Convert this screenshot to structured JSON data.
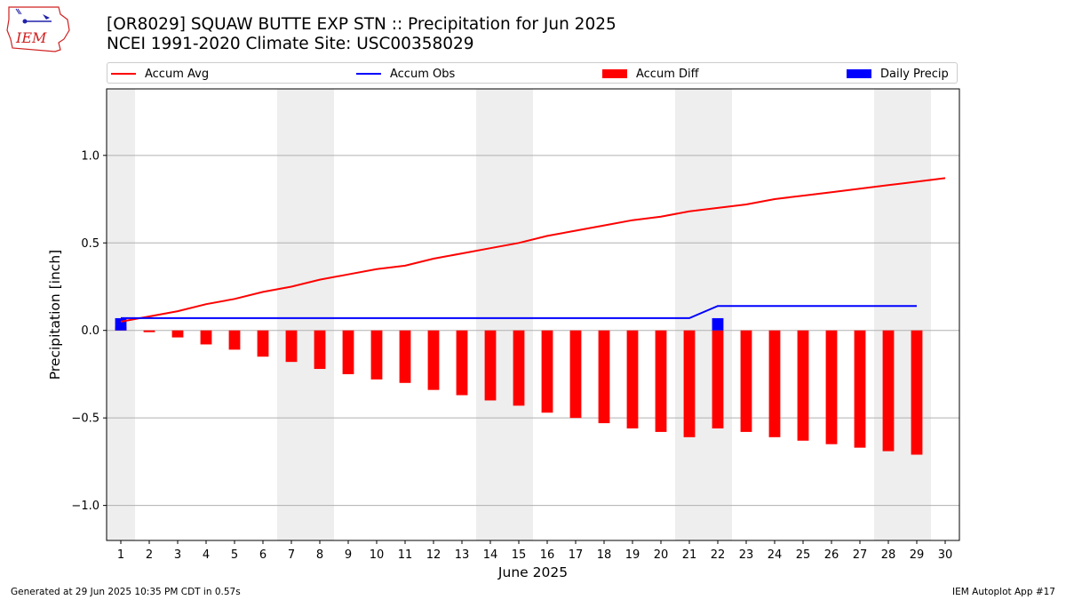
{
  "header": {
    "title_line1": "[OR8029] SQUAW BUTTE EXP STN :: Precipitation for Jun 2025",
    "title_line2": "NCEI 1991-2020 Climate Site: USC00358029",
    "logo_text": "IEM"
  },
  "footer": {
    "generated": "Generated at 29 Jun 2025 10:35 PM CDT in 0.57s",
    "app": "IEM Autoplot App #17"
  },
  "colors": {
    "avg": "#ff0000",
    "obs": "#0000ff",
    "diff": "#ff0000",
    "daily": "#0000ff",
    "weekend_band": "#eeeeee",
    "grid": "#b0b0b0"
  },
  "chart_data": {
    "type": "bar",
    "xlabel": "June 2025",
    "ylabel": "Precipitation [inch]",
    "ylim": [
      -1.2,
      1.38
    ],
    "yticks": [
      -1.0,
      -0.5,
      0.0,
      0.5,
      1.0
    ],
    "ytick_labels": [
      "−1.0",
      "−0.5",
      "0.0",
      "0.5",
      "1.0"
    ],
    "grid": "horizontal",
    "legend_position": "top",
    "x": [
      1,
      2,
      3,
      4,
      5,
      6,
      7,
      8,
      9,
      10,
      11,
      12,
      13,
      14,
      15,
      16,
      17,
      18,
      19,
      20,
      21,
      22,
      23,
      24,
      25,
      26,
      27,
      28,
      29,
      30
    ],
    "weekend_days": [
      1,
      7,
      8,
      14,
      15,
      21,
      22,
      28,
      29
    ],
    "series": [
      {
        "name": "Accum Avg",
        "kind": "line",
        "x": [
          1,
          2,
          3,
          4,
          5,
          6,
          7,
          8,
          9,
          10,
          11,
          12,
          13,
          14,
          15,
          16,
          17,
          18,
          19,
          20,
          21,
          22,
          23,
          24,
          25,
          26,
          27,
          28,
          29,
          30
        ],
        "values": [
          0.05,
          0.08,
          0.11,
          0.15,
          0.18,
          0.22,
          0.25,
          0.29,
          0.32,
          0.35,
          0.37,
          0.41,
          0.44,
          0.47,
          0.5,
          0.54,
          0.57,
          0.6,
          0.63,
          0.65,
          0.68,
          0.7,
          0.72,
          0.75,
          0.77,
          0.79,
          0.81,
          0.83,
          0.85,
          0.87
        ]
      },
      {
        "name": "Accum Obs",
        "kind": "line",
        "x": [
          1,
          2,
          3,
          4,
          5,
          6,
          7,
          8,
          9,
          10,
          11,
          12,
          13,
          14,
          15,
          16,
          17,
          18,
          19,
          20,
          21,
          22,
          23,
          24,
          25,
          26,
          27,
          28,
          29
        ],
        "values": [
          0.07,
          0.07,
          0.07,
          0.07,
          0.07,
          0.07,
          0.07,
          0.07,
          0.07,
          0.07,
          0.07,
          0.07,
          0.07,
          0.07,
          0.07,
          0.07,
          0.07,
          0.07,
          0.07,
          0.07,
          0.07,
          0.14,
          0.14,
          0.14,
          0.14,
          0.14,
          0.14,
          0.14,
          0.14
        ]
      },
      {
        "name": "Accum Diff",
        "kind": "bar",
        "x": [
          1,
          2,
          3,
          4,
          5,
          6,
          7,
          8,
          9,
          10,
          11,
          12,
          13,
          14,
          15,
          16,
          17,
          18,
          19,
          20,
          21,
          22,
          23,
          24,
          25,
          26,
          27,
          28,
          29
        ],
        "values": [
          0.02,
          -0.01,
          -0.04,
          -0.08,
          -0.11,
          -0.15,
          -0.18,
          -0.22,
          -0.25,
          -0.28,
          -0.3,
          -0.34,
          -0.37,
          -0.4,
          -0.43,
          -0.47,
          -0.5,
          -0.53,
          -0.56,
          -0.58,
          -0.61,
          -0.56,
          -0.58,
          -0.61,
          -0.63,
          -0.65,
          -0.67,
          -0.69,
          -0.71
        ]
      },
      {
        "name": "Daily Precip",
        "kind": "bar",
        "x": [
          1,
          22
        ],
        "values": [
          0.07,
          0.07
        ]
      }
    ]
  }
}
